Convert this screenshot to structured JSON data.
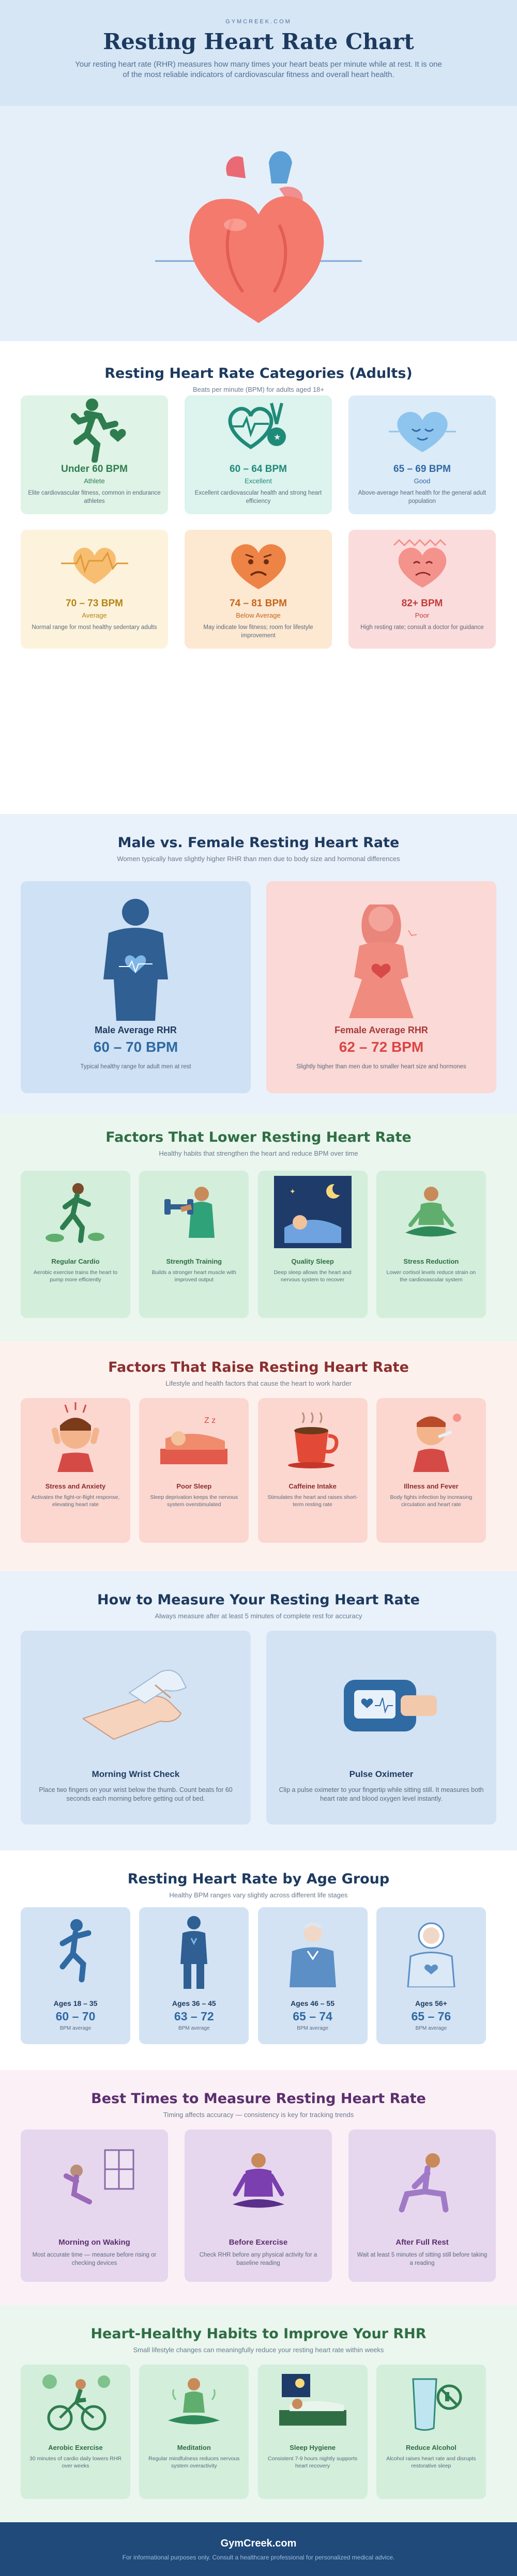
{
  "header": {
    "brand": "GYMCREEK.COM",
    "title": "Resting Heart Rate Chart",
    "intro": "Your resting heart rate (RHR) measures how many times your heart beats per minute while at rest. It is one of the most reliable indicators of cardiovascular fitness and overall heart health."
  },
  "categories": {
    "title": "Resting Heart Rate Categories (Adults)",
    "subtitle": "Beats per minute (BPM) for adults aged 18+",
    "items": [
      {
        "range": "Under 60 BPM",
        "label": "Athlete",
        "desc": "Elite cardiovascular fitness, common in endurance athletes",
        "bg": "#dff3e6",
        "color": "#2e7d4f"
      },
      {
        "range": "60 – 64 BPM",
        "label": "Excellent",
        "desc": "Excellent cardiovascular health and strong heart efficiency",
        "bg": "#dcf3ee",
        "color": "#1f8a78"
      },
      {
        "range": "65 – 69 BPM",
        "label": "Good",
        "desc": "Above-average heart health for the general adult population",
        "bg": "#dcebf8",
        "color": "#2f6aa3"
      },
      {
        "range": "70 – 73 BPM",
        "label": "Average",
        "desc": "Normal range for most healthy sedentary adults",
        "bg": "#fdf3dc",
        "color": "#b58415"
      },
      {
        "range": "74 – 81 BPM",
        "label": "Below Average",
        "desc": "May indicate low fitness; room for lifestyle improvement",
        "bg": "#fde8d2",
        "color": "#c5661a"
      },
      {
        "range": "82+ BPM",
        "label": "Poor",
        "desc": "High resting rate; consult a doctor for guidance",
        "bg": "#fbdcdc",
        "color": "#c23b3b"
      }
    ]
  },
  "gender": {
    "title": "Male vs. Female Resting Heart Rate",
    "subtitle": "Women typically have slightly higher RHR than men due to body size and hormonal differences",
    "male": {
      "label": "Male Average RHR",
      "range": "60 – 70 BPM",
      "desc": "Typical healthy range for adult men at rest"
    },
    "female": {
      "label": "Female Average RHR",
      "range": "62 – 72 BPM",
      "desc": "Slightly higher than men due to smaller heart size and hormones"
    }
  },
  "lower": {
    "title": "Factors That Lower Resting Heart Rate",
    "subtitle": "Healthy habits that strengthen the heart and reduce BPM over time",
    "items": [
      {
        "title": "Regular Cardio",
        "desc": "Aerobic exercise trains the heart to pump more efficiently"
      },
      {
        "title": "Strength Training",
        "desc": "Builds a stronger heart muscle with improved output"
      },
      {
        "title": "Quality Sleep",
        "desc": "Deep sleep allows the heart and nervous system to recover"
      },
      {
        "title": "Stress Reduction",
        "desc": "Lower cortisol levels reduce strain on the cardiovascular system"
      }
    ]
  },
  "raise": {
    "title": "Factors That Raise Resting Heart Rate",
    "subtitle": "Lifestyle and health factors that cause the heart to work harder",
    "items": [
      {
        "title": "Stress and Anxiety",
        "desc": "Activates the fight-or-flight response, elevating heart rate"
      },
      {
        "title": "Poor Sleep",
        "desc": "Sleep deprivation keeps the nervous system overstimulated"
      },
      {
        "title": "Caffeine Intake",
        "desc": "Stimulates the heart and raises short-term resting rate"
      },
      {
        "title": "Illness and Fever",
        "desc": "Body fights infection by increasing circulation and heart rate"
      }
    ]
  },
  "measure": {
    "title": "How to Measure Your Resting Heart Rate",
    "subtitle": "Always measure after at least 5 minutes of complete rest for accuracy",
    "wrist": {
      "title": "Morning Wrist Check",
      "desc": "Place two fingers on your wrist below the thumb. Count beats for 60 seconds each morning before getting out of bed."
    },
    "oximeter": {
      "title": "Pulse Oximeter",
      "desc": "Clip a pulse oximeter to your fingertip while sitting still. It measures both heart rate and blood oxygen level instantly."
    }
  },
  "age": {
    "title": "Resting Heart Rate by Age Group",
    "subtitle": "Healthy BPM ranges vary slightly across different life stages",
    "items": [
      {
        "group": "Ages 18 – 35",
        "range": "60 – 70",
        "unit": "BPM average"
      },
      {
        "group": "Ages 36 – 45",
        "range": "63 – 72",
        "unit": "BPM average"
      },
      {
        "group": "Ages 46 – 55",
        "range": "65 – 74",
        "unit": "BPM average"
      },
      {
        "group": "Ages 56+",
        "range": "65 – 76",
        "unit": "BPM average"
      }
    ]
  },
  "times": {
    "title": "Best Times to Measure Resting Heart Rate",
    "subtitle": "Timing affects accuracy — consistency is key for tracking trends",
    "items": [
      {
        "title": "Morning on Waking",
        "desc": "Most accurate time — measure before rising or checking devices"
      },
      {
        "title": "Before Exercise",
        "desc": "Check RHR before any physical activity for a baseline reading"
      },
      {
        "title": "After Full Rest",
        "desc": "Wait at least 5 minutes of sitting still before taking a reading"
      }
    ]
  },
  "habits": {
    "title": "Heart-Healthy Habits to Improve Your RHR",
    "subtitle": "Small lifestyle changes can meaningfully reduce your resting heart rate within weeks",
    "items": [
      {
        "title": "Aerobic Exercise",
        "desc": "30 minutes of cardio daily lowers RHR over weeks"
      },
      {
        "title": "Meditation",
        "desc": "Regular mindfulness reduces nervous system overactivity"
      },
      {
        "title": "Sleep Hygiene",
        "desc": "Consistent 7-9 hours nightly supports heart recovery"
      },
      {
        "title": "Reduce Alcohol",
        "desc": "Alcohol raises heart rate and disrupts restorative sleep"
      }
    ]
  },
  "footer": {
    "brand": "GymCreek.com",
    "disclaimer": "For informational purposes only. Consult a healthcare professional for personalized medical advice."
  },
  "colors": {
    "navy": "#1d3a5f",
    "footer": "#1f4a7a",
    "heart": "#f47a6e"
  }
}
